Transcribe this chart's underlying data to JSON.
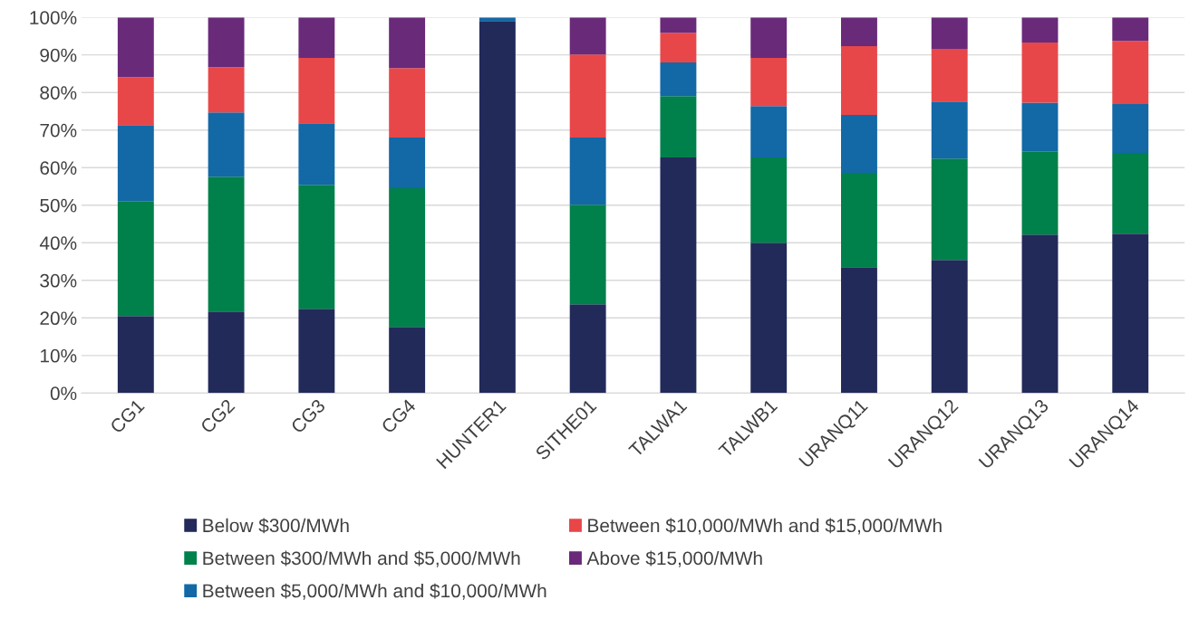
{
  "chart_data": {
    "type": "bar",
    "stacked": true,
    "categories": [
      "CG1",
      "CG2",
      "CG3",
      "CG4",
      "HUNTER1",
      "SITHE01",
      "TALWA1",
      "TALWB1",
      "URANQ11",
      "URANQ12",
      "URANQ13",
      "URANQ14"
    ],
    "series": [
      {
        "name": "Below $300/MWh",
        "color": "#222a5a",
        "values": [
          20.5,
          21.7,
          22.4,
          17.6,
          99.0,
          23.6,
          62.7,
          40.0,
          33.5,
          35.4,
          42.2,
          42.4
        ]
      },
      {
        "name": "Between $300/MWh and $5,000/MWh",
        "color": "#00804a",
        "values": [
          30.6,
          35.9,
          33.0,
          36.9,
          0,
          26.5,
          16.3,
          22.7,
          25.1,
          27.0,
          22.1,
          21.5
        ]
      },
      {
        "name": "Between $5,000/MWh and $10,000/MWh",
        "color": "#1368a6",
        "values": [
          20.2,
          17.1,
          16.4,
          13.5,
          1.0,
          17.9,
          9.0,
          13.7,
          15.4,
          15.2,
          13.0,
          13.0
        ]
      },
      {
        "name": "Between $10,000/MWh and $15,000/MWh",
        "color": "#e8474a",
        "values": [
          12.8,
          12.0,
          17.4,
          18.5,
          0,
          22.1,
          7.9,
          12.8,
          18.3,
          14.0,
          16.0,
          16.8
        ]
      },
      {
        "name": "Above $15,000/MWh",
        "color": "#6a2a7a",
        "values": [
          15.9,
          13.3,
          10.8,
          13.5,
          0,
          9.9,
          4.1,
          10.8,
          7.7,
          8.4,
          6.7,
          6.3
        ]
      }
    ],
    "ylim": [
      0,
      100
    ],
    "yticks": [
      {
        "value": 0,
        "label": "0%"
      },
      {
        "value": 10,
        "label": "10%"
      },
      {
        "value": 20,
        "label": "20%"
      },
      {
        "value": 30,
        "label": "30%"
      },
      {
        "value": 40,
        "label": "40%"
      },
      {
        "value": 50,
        "label": "50%"
      },
      {
        "value": 60,
        "label": "60%"
      },
      {
        "value": 70,
        "label": "70%"
      },
      {
        "value": 80,
        "label": "80%"
      },
      {
        "value": 90,
        "label": "90%"
      },
      {
        "value": 100,
        "label": "100%"
      }
    ],
    "grid": "y",
    "legend": "bottom"
  }
}
